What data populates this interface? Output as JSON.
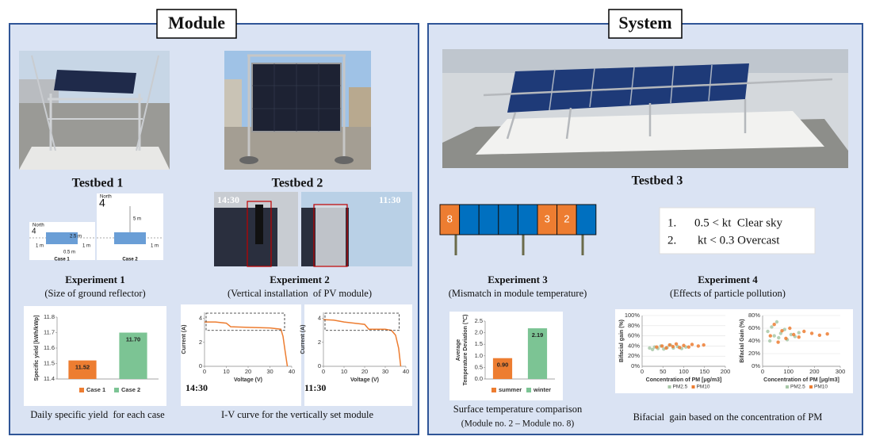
{
  "module_panel": {
    "title": "Module",
    "testbeds": [
      {
        "label": "Testbed 1"
      },
      {
        "label": "Testbed 2",
        "photo_times": [
          "14:30",
          "11:30"
        ]
      }
    ],
    "experiments": [
      {
        "title": "Experiment 1",
        "subtitle": "(Size of ground reflector)",
        "caption": "Daily specific yield  for each case"
      },
      {
        "title": "Experiment 2",
        "subtitle": "(Vertical installation  of PV module)",
        "caption": "I-V curve for the vertically set module"
      }
    ]
  },
  "reflector": {
    "cases": [
      {
        "compass": "North",
        "north_mark": "4",
        "dims": [
          "2.5 m",
          "1 m",
          "1 m",
          "0.5 m"
        ],
        "label": "Case 1"
      },
      {
        "compass": "North",
        "north_mark": "4",
        "dims": [
          "5 m",
          "1 m"
        ],
        "label": "Case 2"
      }
    ]
  },
  "system_panel": {
    "title": "System",
    "testbed": "Testbed 3",
    "module_numbers": [
      "8",
      "3",
      "2"
    ],
    "conditions": [
      {
        "num": "1.",
        "text": "0.5 < kt  Clear sky"
      },
      {
        "num": "2.",
        "text": "kt < 0.3 Overcast"
      }
    ],
    "experiments": [
      {
        "title": "Experiment 3",
        "subtitle": "(Mismatch in module temperature)",
        "caption": [
          "Surface temperature comparison",
          "(Module no. 2 – Module no. 8)"
        ]
      },
      {
        "title": "Experiment 4",
        "subtitle": "(Effects of particle pollution)",
        "caption": "Bifacial  gain based on the concentration of PM"
      }
    ]
  },
  "chart_data": [
    {
      "type": "bar",
      "y_label": "Specific yield [kWh/kWp]",
      "categories": [
        "Case 1",
        "Case 2"
      ],
      "values": [
        11.52,
        11.7
      ],
      "value_labels": [
        "11.52",
        "11.70"
      ],
      "colors": [
        "#ed7d31",
        "#7cc494"
      ],
      "ylim": [
        11.4,
        11.8
      ],
      "yticks": [
        11.4,
        11.5,
        11.6,
        11.7,
        11.8
      ],
      "grid": false
    },
    {
      "type": "line",
      "y_label": "Current (A)",
      "x_label": "Voltage (V)",
      "annotation": "14:30",
      "color": "#ed7d31",
      "x": [
        0,
        5,
        10,
        12,
        20,
        30,
        35,
        36,
        37,
        38
      ],
      "values": [
        3.7,
        3.7,
        3.6,
        3.3,
        3.25,
        3.2,
        3.1,
        2.5,
        1.2,
        0
      ],
      "xlim": [
        0,
        40
      ],
      "xticks": [
        0,
        10,
        20,
        30,
        40
      ],
      "ylim": [
        0,
        4.5
      ],
      "yticks": [
        0,
        2,
        4
      ],
      "grid": false
    },
    {
      "type": "line",
      "y_label": "Current (A)",
      "x_label": "Voltage (V)",
      "annotation": "11:30",
      "color": "#ed7d31",
      "x": [
        0,
        5,
        10,
        15,
        20,
        22,
        30,
        33,
        35,
        36.5,
        37.5
      ],
      "values": [
        3.9,
        3.85,
        3.7,
        3.6,
        3.5,
        3.1,
        3.1,
        3.0,
        2.6,
        1.5,
        0
      ],
      "xlim": [
        0,
        40
      ],
      "xticks": [
        0,
        10,
        20,
        30,
        40
      ],
      "ylim": [
        0,
        4.5
      ],
      "yticks": [
        0,
        2,
        4
      ],
      "grid": false
    },
    {
      "type": "bar",
      "y_label": [
        "Average",
        "Temperature Deviation (℃)"
      ],
      "categories": [
        "summer",
        "winter"
      ],
      "values": [
        0.9,
        2.19
      ],
      "value_labels": [
        "0.90",
        "2.19"
      ],
      "colors": [
        "#ed7d31",
        "#7cc494"
      ],
      "ylim": [
        0,
        2.5
      ],
      "yticks": [
        {
          "value": 0,
          "label": "0.0"
        },
        0.5,
        {
          "value": 1,
          "label": "1.0"
        },
        1.5,
        {
          "value": 2,
          "label": "2.0"
        },
        2.5
      ],
      "grid": false
    },
    {
      "type": "scatter",
      "y_label": "Bifacial gain (%)",
      "x_label": "Concentration of PM [μg/m3]",
      "xlim": [
        0,
        200
      ],
      "xticks": [
        0,
        50,
        100,
        150,
        200
      ],
      "ylim": [
        0,
        100
      ],
      "yticks": [
        {
          "value": 0,
          "label": "0%"
        },
        {
          "value": 20,
          "label": "20%"
        },
        {
          "value": 40,
          "label": "40%"
        },
        {
          "value": 60,
          "label": "60%"
        },
        {
          "value": 80,
          "label": "80%"
        },
        {
          "value": 100,
          "label": "100%"
        }
      ],
      "grid": true,
      "series": [
        {
          "name": "PM2.5",
          "color": "#a8c8a8",
          "x": [
            18,
            25,
            30,
            38,
            45,
            52,
            60,
            68,
            75,
            85,
            95,
            105
          ],
          "values": [
            36,
            33,
            38,
            35,
            40,
            34,
            37,
            42,
            36,
            39,
            35,
            38
          ]
        },
        {
          "name": "PM10",
          "color": "#ed7d31",
          "x": [
            35,
            48,
            58,
            66,
            74,
            82,
            90,
            100,
            112,
            120,
            135,
            148
          ],
          "values": [
            38,
            40,
            36,
            42,
            39,
            44,
            37,
            41,
            38,
            43,
            40,
            42
          ]
        }
      ]
    },
    {
      "type": "scatter",
      "y_label": "Bifacial Gain (%)",
      "x_label": "Concentration of PM [μg/m3]",
      "xlim": [
        0,
        300
      ],
      "xticks": [
        0,
        100,
        200,
        300
      ],
      "ylim": [
        0,
        80
      ],
      "yticks": [
        {
          "value": 0,
          "label": "0%"
        },
        {
          "value": 20,
          "label": "20%"
        },
        {
          "value": 40,
          "label": "40%"
        },
        {
          "value": 60,
          "label": "60%"
        },
        {
          "value": 80,
          "label": "80%"
        }
      ],
      "grid": true,
      "series": [
        {
          "name": "PM2.5",
          "color": "#a8c8a8",
          "x": [
            20,
            28,
            35,
            45,
            55,
            62,
            70,
            85,
            95,
            110,
            125,
            140
          ],
          "values": [
            55,
            40,
            62,
            48,
            70,
            45,
            52,
            58,
            42,
            50,
            47,
            53
          ]
        },
        {
          "name": "PM10",
          "color": "#ed7d31",
          "x": [
            30,
            45,
            60,
            75,
            90,
            105,
            120,
            140,
            160,
            190,
            220,
            250
          ],
          "values": [
            48,
            66,
            38,
            56,
            44,
            60,
            50,
            46,
            55,
            52,
            49,
            51
          ]
        }
      ]
    }
  ]
}
